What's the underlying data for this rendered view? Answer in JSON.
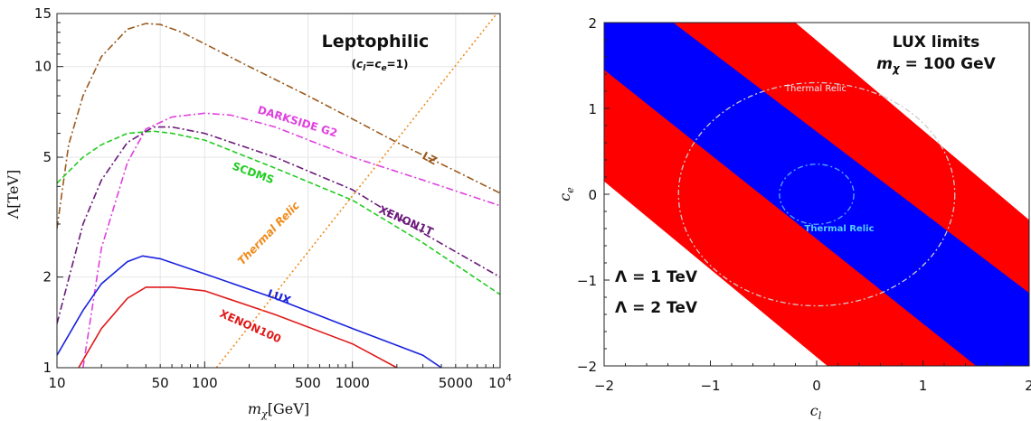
{
  "chart_data": [
    {
      "type": "line",
      "title": "Leptophilic",
      "subtitle": "(c_l=c_e=1)",
      "subtitle_parts": {
        "open": "(",
        "c": "c",
        "l": "l",
        "eq": "=",
        "e": "e",
        "close": "=1)"
      },
      "xlabel": {
        "m": "m",
        "sub": "χ",
        "unit": "[GeV]"
      },
      "ylabel": "Λ[TeV]",
      "xscale": "log",
      "yscale": "log",
      "xlim": [
        10,
        10000
      ],
      "ylim": [
        1,
        15
      ],
      "x_ticks": [
        {
          "value": 10,
          "label": "10"
        },
        {
          "value": 50,
          "label": "50"
        },
        {
          "value": 100,
          "label": "100"
        },
        {
          "value": 500,
          "label": "500"
        },
        {
          "value": 1000,
          "label": "1000"
        },
        {
          "value": 5000,
          "label": "5000"
        },
        {
          "value": 10000,
          "label": "10",
          "sup": "4"
        }
      ],
      "y_ticks": [
        {
          "value": 1,
          "label": "1"
        },
        {
          "value": 2,
          "label": "2"
        },
        {
          "value": 5,
          "label": "5"
        },
        {
          "value": 10,
          "label": "10"
        },
        {
          "value": 15,
          "label": "15"
        }
      ],
      "series": [
        {
          "name": "LZ",
          "color": "#9a5a1e",
          "dash": "8,3,2,3",
          "points": [
            [
              10,
              2.9
            ],
            [
              12,
              5.5
            ],
            [
              15,
              8.0
            ],
            [
              20,
              10.8
            ],
            [
              30,
              13.3
            ],
            [
              40,
              13.9
            ],
            [
              50,
              13.8
            ],
            [
              70,
              13.0
            ],
            [
              100,
              11.9
            ],
            [
              200,
              10.0
            ],
            [
              500,
              8.0
            ],
            [
              1000,
              6.7
            ],
            [
              2000,
              5.6
            ],
            [
              5000,
              4.5
            ],
            [
              10000,
              3.8
            ]
          ]
        },
        {
          "name": "DARKSIDE G2",
          "color": "#e040e0",
          "dash": "8,3,2,3",
          "points": [
            [
              15,
              1.0
            ],
            [
              20,
              2.5
            ],
            [
              30,
              4.8
            ],
            [
              40,
              6.2
            ],
            [
              60,
              6.8
            ],
            [
              100,
              7.0
            ],
            [
              150,
              6.9
            ],
            [
              300,
              6.3
            ],
            [
              1000,
              5.0
            ],
            [
              3000,
              4.2
            ],
            [
              10000,
              3.45
            ]
          ]
        },
        {
          "name": "SCDMS",
          "color": "#22cc22",
          "dash": "6,3",
          "points": [
            [
              10,
              4.1
            ],
            [
              15,
              5.0
            ],
            [
              20,
              5.5
            ],
            [
              30,
              6.0
            ],
            [
              45,
              6.1
            ],
            [
              60,
              6.0
            ],
            [
              100,
              5.7
            ],
            [
              300,
              4.6
            ],
            [
              1000,
              3.6
            ],
            [
              3000,
              2.6
            ],
            [
              10000,
              1.75
            ]
          ]
        },
        {
          "name": "XENON1T",
          "color": "#6a1a7a",
          "dash": "8,3,2,3",
          "points": [
            [
              10,
              1.4
            ],
            [
              15,
              3.0
            ],
            [
              20,
              4.2
            ],
            [
              30,
              5.6
            ],
            [
              45,
              6.3
            ],
            [
              60,
              6.3
            ],
            [
              100,
              6.0
            ],
            [
              300,
              5.0
            ],
            [
              1000,
              3.9
            ],
            [
              3000,
              2.8
            ],
            [
              10000,
              2.0
            ]
          ]
        },
        {
          "name": "LUX",
          "color": "#1a22dd",
          "dash": "",
          "points": [
            [
              10,
              1.1
            ],
            [
              15,
              1.55
            ],
            [
              20,
              1.9
            ],
            [
              30,
              2.25
            ],
            [
              38,
              2.35
            ],
            [
              50,
              2.3
            ],
            [
              100,
              2.05
            ],
            [
              300,
              1.7
            ],
            [
              1000,
              1.35
            ],
            [
              3000,
              1.1
            ],
            [
              4000,
              1.0
            ]
          ]
        },
        {
          "name": "XENON100",
          "color": "#e01a1a",
          "dash": "",
          "points": [
            [
              14,
              1.0
            ],
            [
              20,
              1.35
            ],
            [
              30,
              1.7
            ],
            [
              40,
              1.85
            ],
            [
              60,
              1.85
            ],
            [
              100,
              1.8
            ],
            [
              300,
              1.5
            ],
            [
              1000,
              1.2
            ],
            [
              2000,
              1.0
            ]
          ]
        },
        {
          "name": "Thermal Relic",
          "color": "#f08a1a",
          "dash": "2,3",
          "points": [
            [
              120,
              1.0
            ],
            [
              10000,
              15.5
            ]
          ]
        }
      ],
      "annotations": [
        "LZ",
        "DARKSIDE G2",
        "SCDMS",
        "XENON1T",
        "Thermal Relic",
        "LUX",
        "XENON100"
      ]
    },
    {
      "type": "area",
      "title_line1": "LUX limits",
      "title_line2": {
        "m": "m",
        "sub": "χ",
        "rest": " = 100 GeV"
      },
      "xlabel": {
        "c": "c",
        "sub": "l"
      },
      "ylabel": {
        "c": "c",
        "sub": "e"
      },
      "xlim": [
        -2,
        2
      ],
      "ylim": [
        -2,
        2
      ],
      "x_ticks": [
        {
          "value": -2,
          "label": "−2"
        },
        {
          "value": -1,
          "label": "−1"
        },
        {
          "value": 0,
          "label": "0"
        },
        {
          "value": 1,
          "label": "1"
        },
        {
          "value": 2,
          "label": "2"
        }
      ],
      "y_ticks": [
        {
          "value": -2,
          "label": "−2"
        },
        {
          "value": -1,
          "label": "−1"
        },
        {
          "value": 0,
          "label": "0"
        },
        {
          "value": 1,
          "label": "1"
        },
        {
          "value": 2,
          "label": "2"
        }
      ],
      "regions": [
        {
          "name": "Λ = 2 TeV",
          "color": "#ff0000",
          "polygon": [
            [
              -2,
              1.45
            ],
            [
              -2,
              2
            ],
            [
              -0.2,
              2
            ],
            [
              2,
              -0.3
            ],
            [
              2,
              -2
            ],
            [
              0.1,
              -2
            ],
            [
              -2,
              0.15
            ]
          ]
        },
        {
          "name": "Λ = 1 TeV",
          "color": "#0000ff",
          "polygon": [
            [
              -2,
              2
            ],
            [
              -1.35,
              2
            ],
            [
              2,
              -1.15
            ],
            [
              2,
              -2
            ],
            [
              1.5,
              -2
            ],
            [
              -2,
              1.45
            ]
          ]
        }
      ],
      "contours": [
        {
          "name": "Thermal Relic",
          "color": "#cccccc",
          "center": [
            0,
            0
          ],
          "radius": 1.3
        },
        {
          "name": "Thermal Relic",
          "color": "#55aaff",
          "center": [
            0,
            0
          ],
          "radius": 0.35
        }
      ],
      "contour_labels": [
        "Thermal Relic",
        "Thermal Relic"
      ],
      "legend": [
        {
          "label": "Λ = 1 TeV",
          "color": "#1a22dd"
        },
        {
          "label": "Λ = 2 TeV",
          "color": "#e01a1a"
        }
      ]
    }
  ]
}
